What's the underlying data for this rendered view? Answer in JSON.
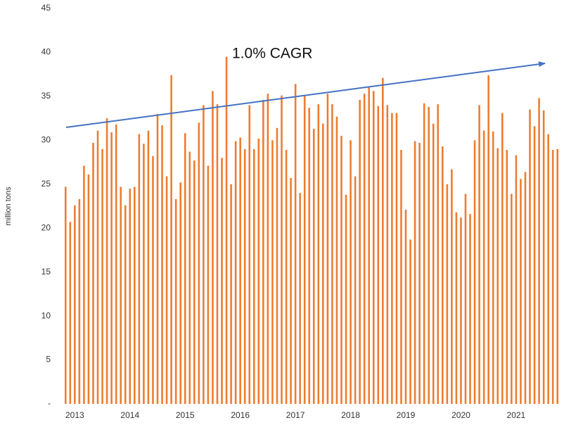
{
  "chart_data": {
    "type": "bar",
    "y_label": "million tons",
    "annotation": "1.0% CAGR",
    "color": "#ed7d31",
    "categories": [
      "2013",
      null,
      null,
      null,
      null,
      null,
      null,
      null,
      null,
      null,
      null,
      null,
      "2014",
      null,
      null,
      null,
      null,
      null,
      null,
      null,
      null,
      null,
      null,
      null,
      "2015",
      null,
      null,
      null,
      null,
      null,
      null,
      null,
      null,
      null,
      null,
      null,
      "2016",
      null,
      null,
      null,
      null,
      null,
      null,
      null,
      null,
      null,
      null,
      null,
      "2017",
      null,
      null,
      null,
      null,
      null,
      null,
      null,
      null,
      null,
      null,
      null,
      "2018",
      null,
      null,
      null,
      null,
      null,
      null,
      null,
      null,
      null,
      null,
      null,
      "2019",
      null,
      null,
      null,
      null,
      null,
      null,
      null,
      null,
      null,
      null,
      null,
      "2020",
      null,
      null,
      null,
      null,
      null,
      null,
      null,
      null,
      null,
      null,
      null,
      "2021",
      null,
      null,
      null,
      null,
      null,
      null,
      null,
      null,
      null,
      null,
      null
    ],
    "values": [
      24.7,
      20.7,
      22.6,
      23.3,
      27.1,
      26.1,
      29.7,
      31.1,
      29.0,
      32.5,
      30.9,
      31.8,
      24.7,
      22.6,
      24.5,
      24.7,
      30.7,
      29.6,
      31.1,
      28.2,
      33.0,
      31.7,
      25.9,
      37.4,
      23.3,
      25.2,
      30.8,
      28.7,
      27.7,
      32.0,
      34.0,
      27.1,
      35.6,
      34.1,
      28.0,
      39.5,
      25.0,
      29.9,
      30.3,
      29.0,
      34.0,
      29.0,
      30.2,
      34.6,
      35.3,
      30.0,
      31.4,
      35.1,
      28.9,
      25.7,
      36.4,
      24.0,
      35.1,
      33.7,
      31.3,
      34.1,
      31.9,
      35.3,
      34.1,
      32.7,
      30.5,
      23.8,
      30.0,
      25.9,
      34.6,
      35.3,
      36.0,
      35.6,
      33.9,
      37.1,
      34.0,
      33.1,
      33.1,
      28.9,
      22.1,
      18.7,
      29.9,
      29.7,
      34.2,
      33.8,
      31.9,
      34.1,
      29.3,
      25.0,
      26.7,
      21.8,
      21.2,
      23.9,
      21.6,
      30.0,
      34.0,
      31.1,
      37.4,
      31.0,
      29.1,
      33.1,
      28.9,
      23.9,
      28.3,
      25.6,
      26.4,
      33.5,
      31.6,
      34.8,
      33.4,
      30.7,
      28.9,
      29.0
    ],
    "ylim": [
      0,
      45
    ],
    "yticks": [
      {
        "value": 0,
        "label": "-"
      },
      5,
      10,
      15,
      20,
      25,
      30,
      35,
      40,
      45
    ],
    "grid": false
  }
}
